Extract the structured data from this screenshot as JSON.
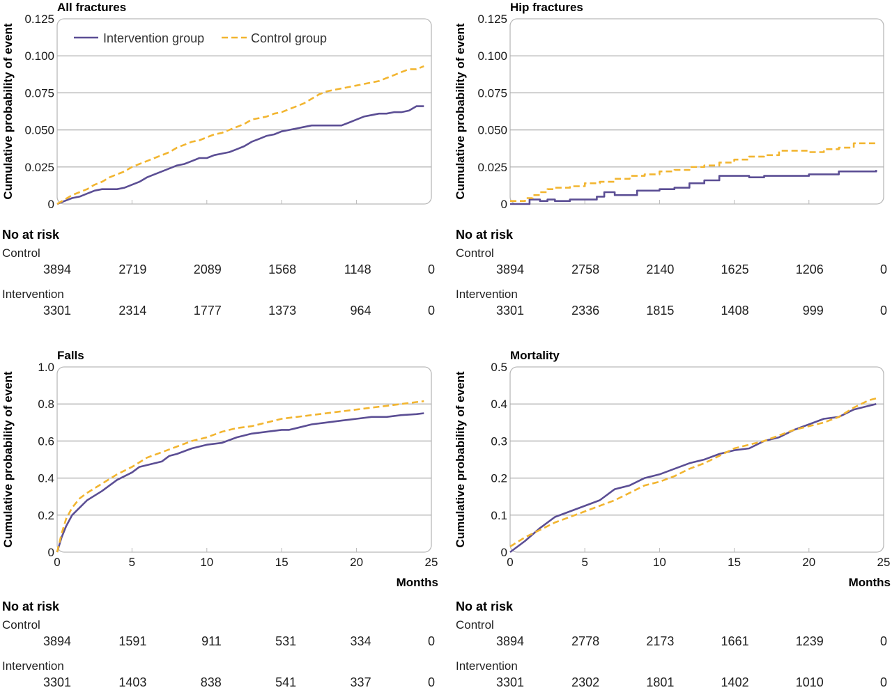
{
  "chart_data": [
    {
      "type": "line",
      "title": "All fractures",
      "ylabel": "Cumulative probability of event",
      "xlabel": "",
      "xlim": [
        0,
        25
      ],
      "ylim": [
        0,
        0.125
      ],
      "yticks": [
        "0",
        "0.025",
        "0.050",
        "0.075",
        "0.100",
        "0.125"
      ],
      "xticks": [],
      "legend": {
        "position": "top-left",
        "entries": [
          "Intervention group",
          "Control group"
        ]
      },
      "series": [
        {
          "name": "Intervention group",
          "color": "#5b4e94",
          "style": "solid",
          "x": [
            0,
            0.5,
            1,
            1.5,
            2,
            2.5,
            3,
            4,
            4.5,
            5,
            5.5,
            6,
            6.5,
            7,
            7.5,
            8,
            8.5,
            9,
            9.5,
            10,
            10.5,
            11,
            11.5,
            12,
            12.5,
            13,
            13.5,
            14,
            14.5,
            15,
            15.5,
            16,
            16.5,
            17,
            17.5,
            18,
            18.5,
            19,
            19.5,
            20,
            20.5,
            21,
            21.5,
            22,
            22.5,
            23,
            23.5,
            24,
            24.5
          ],
          "y": [
            0,
            0.002,
            0.004,
            0.005,
            0.007,
            0.009,
            0.01,
            0.01,
            0.011,
            0.013,
            0.015,
            0.018,
            0.02,
            0.022,
            0.024,
            0.026,
            0.027,
            0.029,
            0.031,
            0.031,
            0.033,
            0.034,
            0.035,
            0.037,
            0.039,
            0.042,
            0.044,
            0.046,
            0.047,
            0.049,
            0.05,
            0.051,
            0.052,
            0.053,
            0.053,
            0.053,
            0.053,
            0.053,
            0.055,
            0.057,
            0.059,
            0.06,
            0.061,
            0.061,
            0.062,
            0.062,
            0.063,
            0.066,
            0.066
          ]
        },
        {
          "name": "Control group",
          "color": "#f2b530",
          "style": "dashed",
          "x": [
            0,
            0.5,
            1,
            1.5,
            2,
            2.5,
            3,
            3.5,
            4,
            4.5,
            5,
            5.5,
            6,
            6.5,
            7,
            7.5,
            8,
            8.5,
            9,
            9.5,
            10,
            10.5,
            11,
            11.5,
            12,
            12.5,
            13,
            13.5,
            14,
            14.5,
            15,
            15.5,
            16,
            16.5,
            17,
            17.5,
            18,
            18.5,
            19,
            19.5,
            20,
            20.5,
            21,
            21.5,
            22,
            22.5,
            23,
            23.5,
            24,
            24.5
          ],
          "y": [
            0,
            0.003,
            0.006,
            0.008,
            0.01,
            0.013,
            0.015,
            0.018,
            0.02,
            0.022,
            0.025,
            0.027,
            0.029,
            0.031,
            0.033,
            0.035,
            0.038,
            0.04,
            0.042,
            0.043,
            0.045,
            0.047,
            0.048,
            0.05,
            0.052,
            0.054,
            0.057,
            0.058,
            0.059,
            0.061,
            0.062,
            0.064,
            0.066,
            0.068,
            0.071,
            0.074,
            0.076,
            0.077,
            0.078,
            0.079,
            0.08,
            0.081,
            0.082,
            0.083,
            0.085,
            0.087,
            0.089,
            0.091,
            0.091,
            0.093
          ]
        }
      ],
      "risk_table": {
        "heading": "No at risk",
        "rows": [
          {
            "label": "Control",
            "values": [
              "3894",
              "2719",
              "2089",
              "1568",
              "1148",
              "0"
            ]
          },
          {
            "label": "Intervention",
            "values": [
              "3301",
              "2314",
              "1777",
              "1373",
              "964",
              "0"
            ]
          }
        ]
      }
    },
    {
      "type": "line",
      "title": "Hip fractures",
      "ylabel": "Cumulative probability of event",
      "xlabel": "",
      "xlim": [
        0,
        25
      ],
      "ylim": [
        0,
        0.125
      ],
      "yticks": [
        "0",
        "0.025",
        "0.050",
        "0.075",
        "0.100",
        "0.125"
      ],
      "xticks": [],
      "series": [
        {
          "name": "Intervention group",
          "color": "#5b4e94",
          "style": "step",
          "x": [
            0,
            0.7,
            1.3,
            2,
            2.5,
            3,
            4,
            5,
            5.8,
            6.3,
            7,
            8.5,
            10,
            11,
            12,
            13,
            14,
            16,
            17,
            20,
            22,
            24.5
          ],
          "y": [
            0,
            0,
            0.003,
            0.002,
            0.003,
            0.002,
            0.003,
            0.003,
            0.005,
            0.008,
            0.006,
            0.009,
            0.01,
            0.011,
            0.014,
            0.016,
            0.019,
            0.018,
            0.019,
            0.02,
            0.022,
            0.023
          ]
        },
        {
          "name": "Control group",
          "color": "#f2b530",
          "style": "step-dashed",
          "x": [
            0,
            1,
            1.5,
            2,
            2.5,
            3,
            4,
            5,
            6,
            7,
            8,
            9,
            10,
            11,
            12,
            13,
            14,
            15,
            16,
            17,
            18,
            19,
            20,
            21,
            22,
            23,
            24,
            24.5
          ],
          "y": [
            0.002,
            0.004,
            0.006,
            0.008,
            0.01,
            0.011,
            0.012,
            0.014,
            0.015,
            0.017,
            0.019,
            0.02,
            0.022,
            0.023,
            0.025,
            0.026,
            0.028,
            0.03,
            0.032,
            0.033,
            0.036,
            0.036,
            0.035,
            0.037,
            0.038,
            0.041,
            0.041,
            0.042
          ]
        }
      ],
      "risk_table": {
        "heading": "No at risk",
        "rows": [
          {
            "label": "Control",
            "values": [
              "3894",
              "2758",
              "2140",
              "1625",
              "1206",
              "0"
            ]
          },
          {
            "label": "Intervention",
            "values": [
              "3301",
              "2336",
              "1815",
              "1408",
              "999",
              "0"
            ]
          }
        ]
      }
    },
    {
      "type": "line",
      "title": "Falls",
      "ylabel": "Cumulative probability of event",
      "xlabel": "Months",
      "xlim": [
        0,
        25
      ],
      "ylim": [
        0,
        1.0
      ],
      "yticks": [
        "0",
        "0.2",
        "0.4",
        "0.6",
        "0.8",
        "1.0"
      ],
      "xticks": [
        "0",
        "5",
        "10",
        "15",
        "20",
        "25"
      ],
      "series": [
        {
          "name": "Intervention group",
          "color": "#5b4e94",
          "style": "solid",
          "x": [
            0,
            0.3,
            0.6,
            1,
            1.5,
            2,
            3,
            4,
            5,
            5.5,
            6,
            7,
            7.5,
            8,
            9,
            10,
            11,
            12,
            13,
            14,
            15,
            15.5,
            16,
            17,
            18,
            19,
            20,
            21,
            22,
            23,
            24,
            24.5
          ],
          "y": [
            0,
            0.08,
            0.14,
            0.2,
            0.24,
            0.28,
            0.33,
            0.39,
            0.43,
            0.46,
            0.47,
            0.49,
            0.52,
            0.53,
            0.56,
            0.58,
            0.59,
            0.62,
            0.64,
            0.65,
            0.66,
            0.66,
            0.67,
            0.69,
            0.7,
            0.71,
            0.72,
            0.73,
            0.73,
            0.74,
            0.745,
            0.75
          ]
        },
        {
          "name": "Control group",
          "color": "#f2b530",
          "style": "dashed",
          "x": [
            0,
            0.3,
            0.6,
            1,
            1.5,
            2,
            3,
            4,
            5,
            6,
            7,
            8,
            9,
            10,
            11,
            12,
            13,
            14,
            15,
            16,
            17,
            18,
            19,
            20,
            21,
            22,
            23,
            24,
            24.5
          ],
          "y": [
            0,
            0.1,
            0.18,
            0.24,
            0.29,
            0.32,
            0.37,
            0.42,
            0.46,
            0.51,
            0.54,
            0.57,
            0.6,
            0.62,
            0.65,
            0.67,
            0.68,
            0.7,
            0.72,
            0.73,
            0.74,
            0.75,
            0.76,
            0.77,
            0.78,
            0.79,
            0.8,
            0.81,
            0.815
          ]
        }
      ],
      "risk_table": {
        "heading": "No at risk",
        "rows": [
          {
            "label": "Control",
            "values": [
              "3894",
              "1591",
              "911",
              "531",
              "334",
              "0"
            ]
          },
          {
            "label": "Intervention",
            "values": [
              "3301",
              "1403",
              "838",
              "541",
              "337",
              "0"
            ]
          }
        ]
      }
    },
    {
      "type": "line",
      "title": "Mortality",
      "ylabel": "Cumulative probability of event",
      "xlabel": "Months",
      "xlim": [
        0,
        25
      ],
      "ylim": [
        0,
        0.5
      ],
      "yticks": [
        "0",
        "0.1",
        "0.2",
        "0.3",
        "0.4",
        "0.5"
      ],
      "xticks": [
        "0",
        "5",
        "10",
        "15",
        "20",
        "25"
      ],
      "series": [
        {
          "name": "Intervention group",
          "color": "#5b4e94",
          "style": "solid",
          "x": [
            0,
            1,
            2,
            3,
            4,
            5,
            6,
            7,
            8,
            9,
            10,
            11,
            12,
            13,
            14,
            15,
            16,
            17,
            18,
            19,
            20,
            21,
            22,
            23,
            24,
            24.5
          ],
          "y": [
            0,
            0.03,
            0.065,
            0.095,
            0.11,
            0.125,
            0.14,
            0.17,
            0.18,
            0.2,
            0.21,
            0.225,
            0.24,
            0.25,
            0.265,
            0.275,
            0.28,
            0.3,
            0.31,
            0.33,
            0.345,
            0.36,
            0.365,
            0.385,
            0.395,
            0.4
          ]
        },
        {
          "name": "Control group",
          "color": "#f2b530",
          "style": "dashed",
          "x": [
            0,
            1,
            2,
            3,
            4,
            5,
            6,
            7,
            8,
            9,
            10,
            11,
            12,
            13,
            14,
            15,
            16,
            17,
            18,
            19,
            20,
            21,
            22,
            23,
            24,
            24.5
          ],
          "y": [
            0.015,
            0.04,
            0.06,
            0.08,
            0.095,
            0.11,
            0.125,
            0.14,
            0.16,
            0.18,
            0.19,
            0.205,
            0.225,
            0.24,
            0.26,
            0.28,
            0.29,
            0.3,
            0.315,
            0.33,
            0.34,
            0.35,
            0.365,
            0.39,
            0.41,
            0.415
          ]
        }
      ],
      "risk_table": {
        "heading": "No at risk",
        "rows": [
          {
            "label": "Control",
            "values": [
              "3894",
              "2778",
              "2173",
              "1661",
              "1239",
              "0"
            ]
          },
          {
            "label": "Intervention",
            "values": [
              "3301",
              "2302",
              "1801",
              "1402",
              "1010",
              "0"
            ]
          }
        ]
      }
    }
  ]
}
